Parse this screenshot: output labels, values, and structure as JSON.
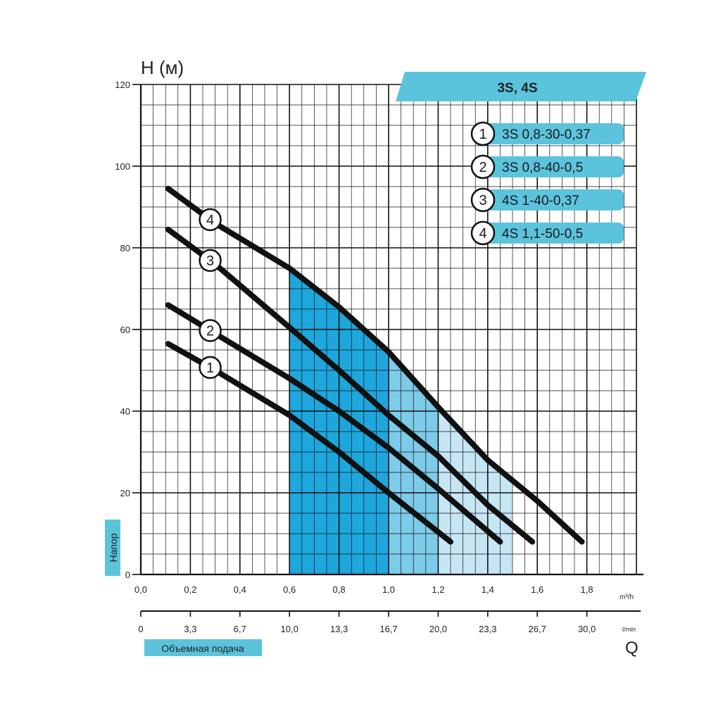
{
  "chart_data": {
    "type": "line",
    "title": "3S, 4S",
    "ylabel": "H (м)",
    "ylabel_side": "Напор",
    "xlabel_side": "Объемная подача",
    "xlabel_symbol": "Q",
    "x_unit_top": "m³/h",
    "x_unit_bottom": "l/min",
    "xlim": [
      0,
      1.8
    ],
    "ylim": [
      0,
      120
    ],
    "x_ticks": [
      "0,0",
      "0,2",
      "0,4",
      "0,6",
      "0,8",
      "1,0",
      "1,2",
      "1,4",
      "1,6",
      "1,8"
    ],
    "x2_ticks": [
      "0",
      "3,3",
      "6,7",
      "10,0",
      "13,3",
      "16,7",
      "20,0",
      "23,3",
      "26,7",
      "30,0"
    ],
    "y_ticks": [
      "0",
      "20",
      "40",
      "60",
      "80",
      "100",
      "120"
    ],
    "grid": true,
    "legend_position": "top-right",
    "series": [
      {
        "name": "3S 0,8-30-0,37",
        "marker": "1",
        "color": "#111111",
        "x": [
          0.11,
          0.3,
          0.6,
          0.8,
          1.0,
          1.25
        ],
        "y": [
          56.5,
          50,
          39,
          30,
          20,
          8
        ]
      },
      {
        "name": "3S 0,8-40-0,5",
        "marker": "2",
        "color": "#111111",
        "x": [
          0.11,
          0.3,
          0.6,
          0.8,
          1.0,
          1.2,
          1.45
        ],
        "y": [
          66,
          59,
          48,
          40,
          31,
          21,
          8
        ]
      },
      {
        "name": "4S 1-40-0,37",
        "marker": "3",
        "color": "#111111",
        "x": [
          0.11,
          0.3,
          0.6,
          0.8,
          1.0,
          1.2,
          1.4,
          1.58
        ],
        "y": [
          84.5,
          76,
          60.5,
          50,
          39,
          29,
          17,
          8
        ]
      },
      {
        "name": "4S 1,1-50-0,5",
        "marker": "4",
        "color": "#111111",
        "x": [
          0.11,
          0.3,
          0.6,
          0.8,
          1.0,
          1.2,
          1.4,
          1.6,
          1.78
        ],
        "y": [
          94.5,
          86,
          75,
          65.5,
          54.5,
          41,
          28,
          18,
          8
        ]
      }
    ],
    "bands": [
      {
        "x": [
          0.6,
          1.5
        ],
        "color": "#c6e6f4"
      },
      {
        "x": [
          0.6,
          1.2
        ],
        "color": "#7ccbe9"
      },
      {
        "x": [
          0.6,
          1.0
        ],
        "color": "#1ea7dd"
      }
    ],
    "colors": {
      "accent": "#5bc4dc",
      "line": "#111111",
      "grid": "#111111"
    }
  }
}
